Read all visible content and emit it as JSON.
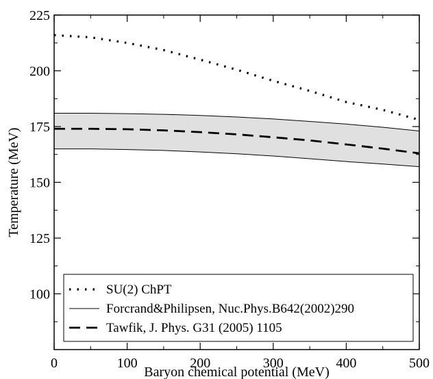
{
  "chart_data": {
    "type": "line",
    "title": "",
    "xlabel": "Baryon chemical potential (MeV)",
    "ylabel": "Temperature (MeV)",
    "xlim": [
      0,
      500
    ],
    "ylim": [
      75,
      225
    ],
    "xticks": [
      0,
      100,
      200,
      300,
      400,
      500
    ],
    "yticks": [
      100,
      125,
      150,
      175,
      200,
      225
    ],
    "grid": false,
    "legend_position": "bottom-left",
    "band": {
      "name": "Forcrand&Philipsen, Nuc.Phys.B642(2002)290",
      "x": [
        0,
        50,
        100,
        150,
        200,
        250,
        300,
        350,
        400,
        450,
        500
      ],
      "upper": [
        181,
        181,
        180.8,
        180.5,
        180,
        179.3,
        178.4,
        177.3,
        176.1,
        174.7,
        173
      ],
      "lower": [
        165,
        165,
        164.7,
        164.3,
        163.6,
        162.8,
        161.8,
        160.6,
        159.3,
        158.2,
        157
      ],
      "fill_color": "#e0e0e0"
    },
    "series": [
      {
        "name": "SU(2) ChPT",
        "style": "dotted",
        "x": [
          0,
          50,
          100,
          150,
          200,
          250,
          300,
          350,
          400,
          450,
          500
        ],
        "values": [
          216,
          215,
          212.5,
          209.3,
          205,
          200.5,
          195.5,
          191,
          186,
          182.5,
          178
        ]
      },
      {
        "name": "Forcrand&Philipsen, Nuc.Phys.B642(2002)290",
        "style": "solid",
        "x": [],
        "values": []
      },
      {
        "name": "Tawfik, J. Phys. G31 (2005) 1105",
        "style": "dashed",
        "x": [
          0,
          50,
          100,
          150,
          200,
          250,
          300,
          350,
          400,
          450,
          500
        ],
        "values": [
          174,
          174,
          173.8,
          173.3,
          172.5,
          171.5,
          170.2,
          168.8,
          167,
          165.1,
          163
        ]
      }
    ]
  }
}
